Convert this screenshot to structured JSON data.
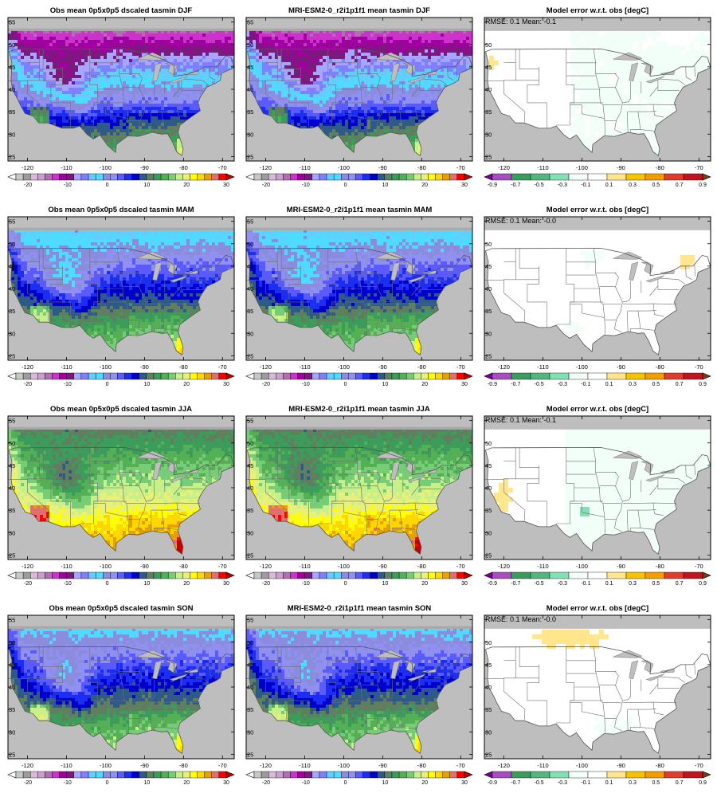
{
  "scale_obs": {
    "colors": [
      "#ffffff",
      "#c7c7c7",
      "#9c9c9c",
      "#d9b8d9",
      "#c9a0c9",
      "#b070b0",
      "#cc33cc",
      "#a000a0",
      "#7a1a7a",
      "#a6a6ff",
      "#7f7fff",
      "#66ccff",
      "#4ddcff",
      "#8c8cdc",
      "#9090f0",
      "#5a5aff",
      "#1c2ef0",
      "#0000cc",
      "#2e5a8a",
      "#5f7f5f",
      "#3c9c5c",
      "#55b055",
      "#77cc77",
      "#c8f08a",
      "#e6f07a",
      "#ffff00",
      "#ffd700",
      "#e6a000",
      "#e07070",
      "#ff0000",
      "#c00000"
    ],
    "labels": [
      "-20",
      "-10",
      "0",
      "10",
      "20",
      "30"
    ]
  },
  "scale_err": {
    "colors": [
      "#7a0099",
      "#a64dbf",
      "#3c9c5c",
      "#55b57f",
      "#82e0b4",
      "#f2fff8",
      "#ffffff",
      "#ffe68c",
      "#f5c400",
      "#f29e00",
      "#e03c2e",
      "#c0141e",
      "#7a3c14"
    ],
    "labels": [
      "-0.9",
      "-0.7",
      "-0.5",
      "-0.3",
      "-0.1",
      "0.1",
      "0.3",
      "0.5",
      "0.7",
      "0.9"
    ]
  },
  "axes": {
    "x_ticks": [
      "-120",
      "-110",
      "-100",
      "-90",
      "-80",
      "-70"
    ],
    "y_ticks": [
      "25",
      "30",
      "35",
      "40",
      "45",
      "50",
      "55"
    ]
  },
  "rows": [
    {
      "season": "DJF",
      "obs_title": "Obs mean 0p5x0p5 dscaled tasmin DJF",
      "model_title": "MRI-ESM2-0_r2i1p1f1 mean tasmin DJF",
      "err_title": "Model error w.r.t. obs [degC]",
      "stats": "RMSE: 0.1   Mean: -0.1"
    },
    {
      "season": "MAM",
      "obs_title": "Obs mean 0p5x0p5 dscaled tasmin MAM",
      "model_title": "MRI-ESM2-0_r2i1p1f1 mean tasmin MAM",
      "err_title": "Model error w.r.t. obs [degC]",
      "stats": "RMSE: 0.1   Mean: -0.0"
    },
    {
      "season": "JJA",
      "obs_title": "Obs mean 0p5x0p5 dscaled tasmin JJA",
      "model_title": "MRI-ESM2-0_r2i1p1f1 mean tasmin JJA",
      "err_title": "Model error w.r.t. obs [degC]",
      "stats": "RMSE: 0.1   Mean: -0.1"
    },
    {
      "season": "SON",
      "obs_title": "Obs mean 0p5x0p5 dscaled tasmin SON",
      "model_title": "MRI-ESM2-0_r2i1p1f1 mean tasmin SON",
      "err_title": "Model error w.r.t. obs [degC]",
      "stats": "RMSE: 0.1   Mean: -0.0"
    }
  ]
}
